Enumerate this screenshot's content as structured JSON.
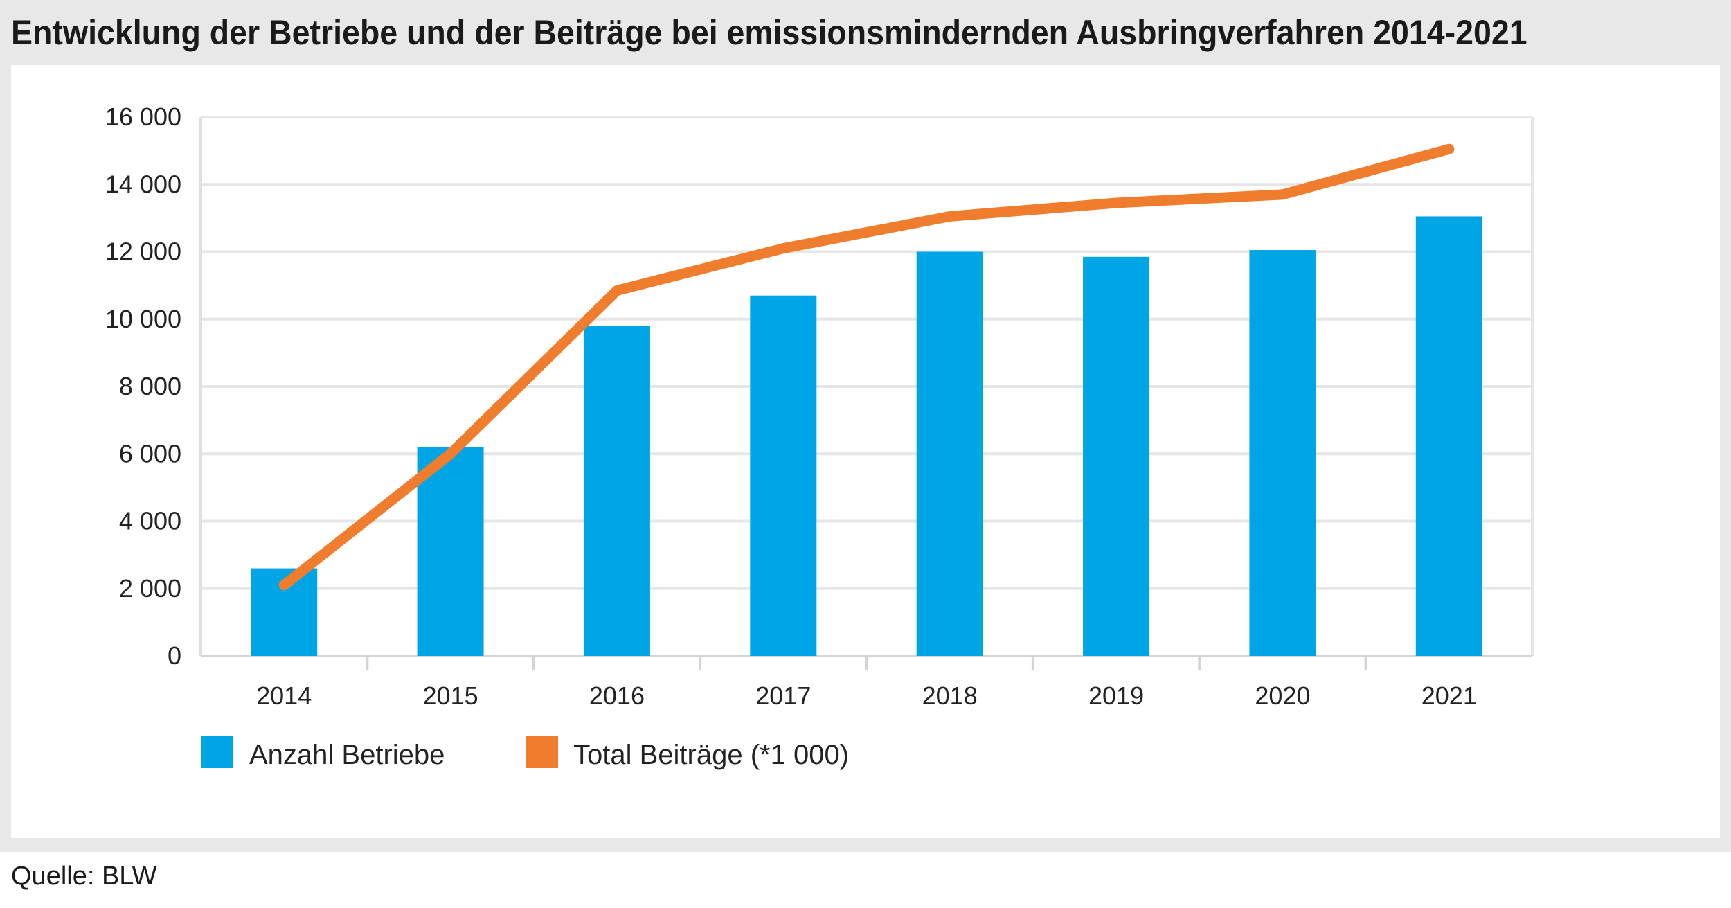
{
  "title": "Entwicklung der Betriebe und der Beiträge bei emissionsmindernden Ausbringverfahren 2014-2021",
  "source": "Quelle: BLW",
  "colors": {
    "bars": "#00a5e6",
    "line": "#ef7d2d",
    "grid": "#e6e6e6"
  },
  "chart_data": {
    "type": "bar",
    "title": "Entwicklung der Betriebe und der Beiträge bei emissionsmindernden Ausbringverfahren 2014-2021",
    "xlabel": "",
    "ylabel": "",
    "categories": [
      "2014",
      "2015",
      "2016",
      "2017",
      "2018",
      "2019",
      "2020",
      "2021"
    ],
    "ylim": [
      0,
      16000
    ],
    "yticks": [
      0,
      2000,
      4000,
      6000,
      8000,
      10000,
      12000,
      14000,
      16000
    ],
    "ytick_labels": [
      "0",
      "2 000",
      "4 000",
      "6 000",
      "8 000",
      "10 000",
      "12 000",
      "14 000",
      "16 000"
    ],
    "grid": true,
    "legend_position": "bottom-left",
    "series": [
      {
        "name": "Anzahl Betriebe",
        "type": "bar",
        "values": [
          2600,
          6200,
          9800,
          10700,
          12000,
          11850,
          12050,
          13050
        ]
      },
      {
        "name": "Total Beiträge (*1 000)",
        "type": "line",
        "values": [
          2100,
          6000,
          10850,
          12100,
          13050,
          13450,
          13700,
          15050
        ]
      }
    ]
  }
}
